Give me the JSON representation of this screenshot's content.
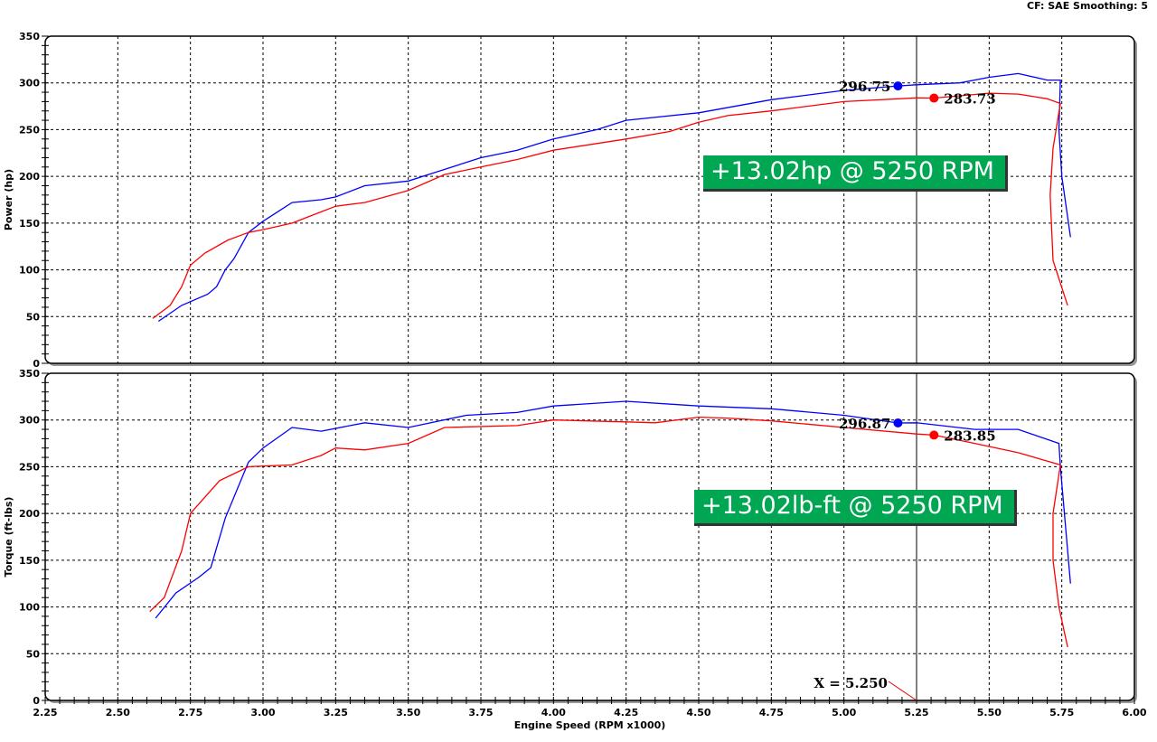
{
  "header": {
    "text": "CF: SAE  Smoothing: 5"
  },
  "chart_data": [
    {
      "type": "line",
      "ylabel": "Power (hp)",
      "xlabel": "Engine Speed (RPM x1000)",
      "xlim": [
        2.25,
        6.0
      ],
      "ylim": [
        0,
        350
      ],
      "xticks": [
        "2.25",
        "2.50",
        "2.75",
        "3.00",
        "3.25",
        "3.50",
        "3.75",
        "4.00",
        "4.25",
        "4.50",
        "4.75",
        "5.00",
        "5.25",
        "5.50",
        "5.75",
        "6.00"
      ],
      "yticks": [
        "0",
        "50",
        "100",
        "150",
        "200",
        "250",
        "300",
        "350"
      ],
      "grid": true,
      "series": [
        {
          "color": "#0000ff",
          "points": [
            [
              2.64,
              45
            ],
            [
              2.72,
              62
            ],
            [
              2.81,
              74
            ],
            [
              2.84,
              82
            ],
            [
              2.87,
              100
            ],
            [
              2.9,
              112
            ],
            [
              2.95,
              140
            ],
            [
              3.0,
              152
            ],
            [
              3.05,
              162
            ],
            [
              3.1,
              172
            ],
            [
              3.2,
              175
            ],
            [
              3.25,
              178
            ],
            [
              3.35,
              190
            ],
            [
              3.5,
              195
            ],
            [
              3.6,
              205
            ],
            [
              3.75,
              220
            ],
            [
              3.875,
              228
            ],
            [
              4.0,
              240
            ],
            [
              4.15,
              250
            ],
            [
              4.25,
              260
            ],
            [
              4.5,
              268
            ],
            [
              4.75,
              282
            ],
            [
              5.0,
              292
            ],
            [
              5.186,
              296.75
            ],
            [
              5.25,
              298
            ],
            [
              5.4,
              300
            ],
            [
              5.5,
              306
            ],
            [
              5.6,
              310
            ],
            [
              5.7,
              303
            ],
            [
              5.745,
              303
            ],
            [
              5.74,
              250
            ],
            [
              5.75,
              200
            ],
            [
              5.78,
              135
            ]
          ]
        },
        {
          "color": "#ff0000",
          "points": [
            [
              2.62,
              48
            ],
            [
              2.68,
              62
            ],
            [
              2.72,
              82
            ],
            [
              2.75,
              105
            ],
            [
              2.8,
              118
            ],
            [
              2.88,
              132
            ],
            [
              2.95,
              140
            ],
            [
              3.0,
              143
            ],
            [
              3.1,
              150
            ],
            [
              3.2,
              162
            ],
            [
              3.25,
              168
            ],
            [
              3.35,
              172
            ],
            [
              3.5,
              185
            ],
            [
              3.625,
              202
            ],
            [
              3.75,
              210
            ],
            [
              3.875,
              218
            ],
            [
              4.0,
              228
            ],
            [
              4.25,
              240
            ],
            [
              4.4,
              248
            ],
            [
              4.5,
              258
            ],
            [
              4.6,
              265
            ],
            [
              4.75,
              270
            ],
            [
              5.0,
              280
            ],
            [
              5.25,
              284
            ],
            [
              5.31,
              283.73
            ],
            [
              5.5,
              289
            ],
            [
              5.6,
              288
            ],
            [
              5.7,
              283
            ],
            [
              5.745,
              278
            ],
            [
              5.72,
              230
            ],
            [
              5.71,
              180
            ],
            [
              5.72,
              110
            ],
            [
              5.77,
              62
            ]
          ]
        }
      ],
      "markers": [
        {
          "label": "296.75",
          "x": 5.186,
          "y": 296.75,
          "color": "#0000ff"
        },
        {
          "label": "283.73",
          "x": 5.31,
          "y": 283.73,
          "color": "#ff0000"
        }
      ],
      "cursor_x": 5.25,
      "annotation": "+13.02hp @ 5250 RPM"
    },
    {
      "type": "line",
      "ylabel": "Torque (ft-lbs)",
      "xlabel": "Engine Speed (RPM x1000)",
      "xlim": [
        2.25,
        6.0
      ],
      "ylim": [
        0,
        350
      ],
      "xticks": [
        "2.25",
        "2.50",
        "2.75",
        "3.00",
        "3.25",
        "3.50",
        "3.75",
        "4.00",
        "4.25",
        "4.50",
        "4.75",
        "5.00",
        "5.25",
        "5.50",
        "5.75",
        "6.00"
      ],
      "yticks": [
        "0",
        "50",
        "100",
        "150",
        "200",
        "250",
        "300",
        "350"
      ],
      "grid": true,
      "series": [
        {
          "color": "#0000ff",
          "points": [
            [
              2.63,
              88
            ],
            [
              2.7,
              115
            ],
            [
              2.78,
              132
            ],
            [
              2.82,
              142
            ],
            [
              2.87,
              195
            ],
            [
              2.95,
              255
            ],
            [
              3.0,
              270
            ],
            [
              3.1,
              292
            ],
            [
              3.2,
              288
            ],
            [
              3.35,
              297
            ],
            [
              3.5,
              292
            ],
            [
              3.7,
              305
            ],
            [
              3.875,
              308
            ],
            [
              4.0,
              315
            ],
            [
              4.25,
              320
            ],
            [
              4.5,
              315
            ],
            [
              4.75,
              312
            ],
            [
              5.0,
              305
            ],
            [
              5.186,
              296.87
            ],
            [
              5.25,
              297
            ],
            [
              5.45,
              290
            ],
            [
              5.6,
              290
            ],
            [
              5.74,
              275
            ],
            [
              5.745,
              250
            ],
            [
              5.78,
              125
            ]
          ]
        },
        {
          "color": "#ff0000",
          "points": [
            [
              2.61,
              95
            ],
            [
              2.66,
              110
            ],
            [
              2.72,
              160
            ],
            [
              2.75,
              200
            ],
            [
              2.85,
              235
            ],
            [
              2.95,
              250
            ],
            [
              3.1,
              252
            ],
            [
              3.2,
              262
            ],
            [
              3.25,
              270
            ],
            [
              3.35,
              268
            ],
            [
              3.5,
              275
            ],
            [
              3.625,
              292
            ],
            [
              3.875,
              294
            ],
            [
              4.0,
              300
            ],
            [
              4.25,
              298
            ],
            [
              4.35,
              297
            ],
            [
              4.5,
              303
            ],
            [
              4.6,
              302
            ],
            [
              4.75,
              299
            ],
            [
              5.0,
              292
            ],
            [
              5.25,
              285
            ],
            [
              5.31,
              283.85
            ],
            [
              5.45,
              275
            ],
            [
              5.6,
              265
            ],
            [
              5.745,
              252
            ],
            [
              5.72,
              200
            ],
            [
              5.72,
              150
            ],
            [
              5.74,
              100
            ],
            [
              5.77,
              57
            ]
          ]
        }
      ],
      "markers": [
        {
          "label": "296.87",
          "x": 5.186,
          "y": 296.87,
          "color": "#0000ff"
        },
        {
          "label": "283.85",
          "x": 5.31,
          "y": 283.85,
          "color": "#ff0000"
        }
      ],
      "cursor_x": 5.25,
      "cursor_label": "X = 5.250",
      "annotation": "+13.02lb-ft @ 5250 RPM"
    }
  ]
}
